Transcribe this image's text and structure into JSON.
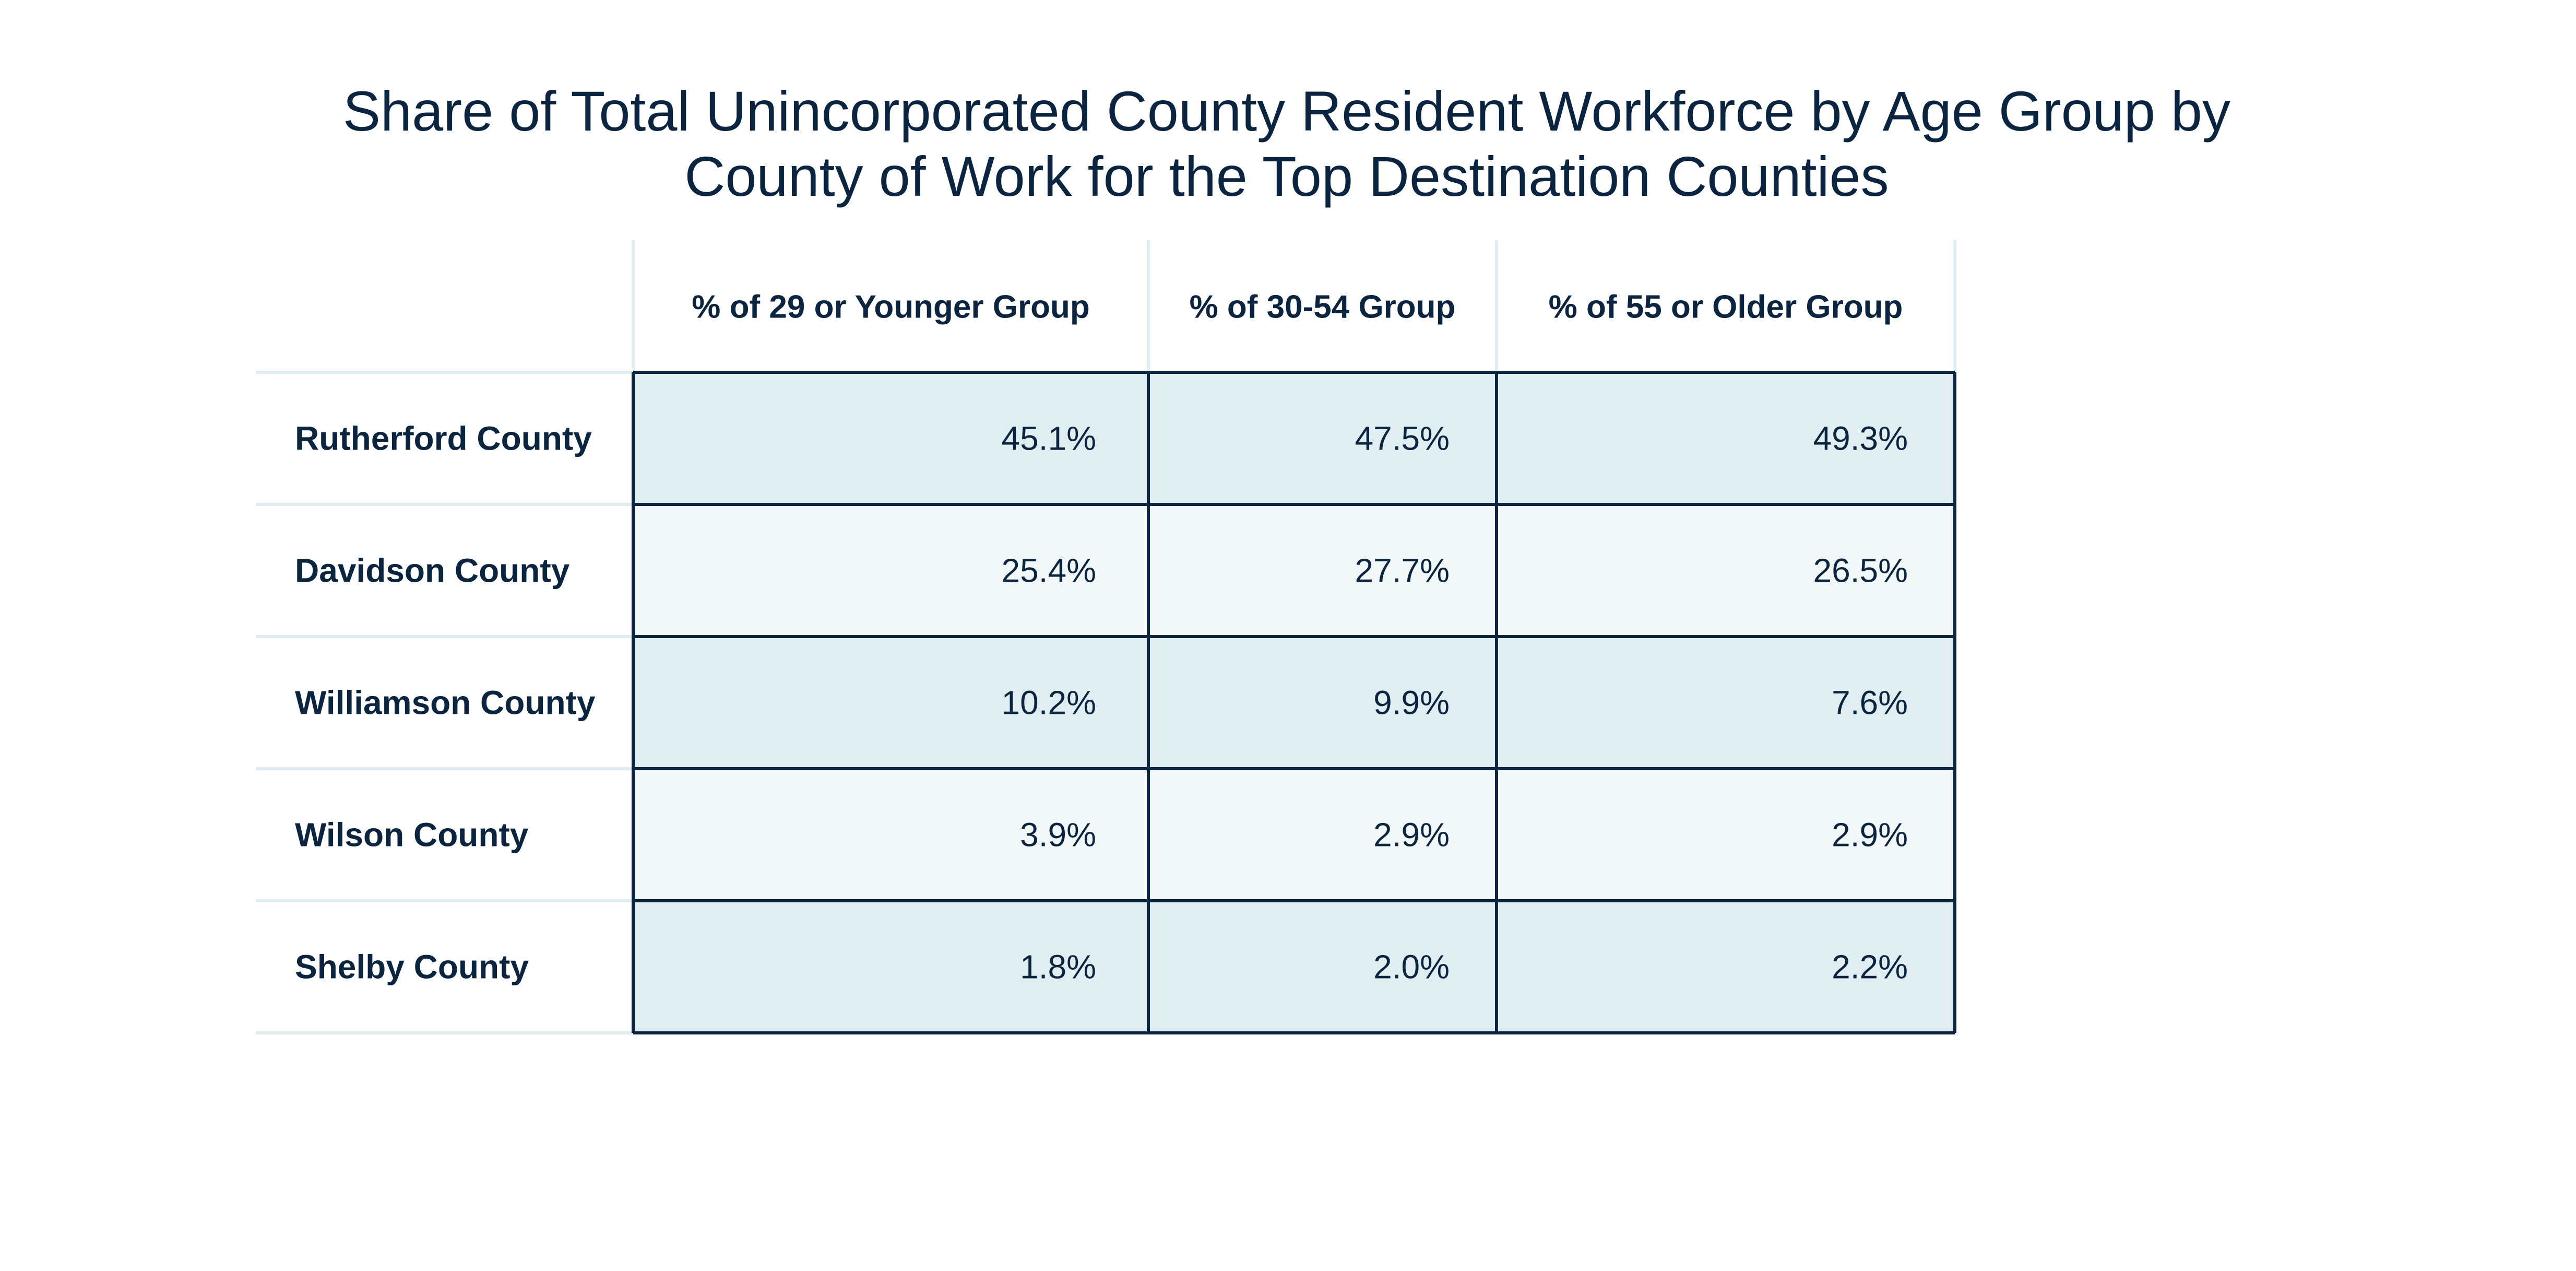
{
  "chart_data": {
    "type": "table",
    "title_lines": [
      "Share of Total Unincorporated County Resident Workforce by Age Group by",
      "County of Work for the Top Destination Counties"
    ],
    "columns": [
      "% of 29 or Younger Group",
      "% of 30-54 Group",
      "% of 55 or Older Group"
    ],
    "rows": [
      {
        "label": "Rutherford County",
        "values": [
          "45.1%",
          "47.5%",
          "49.3%"
        ]
      },
      {
        "label": "Davidson County",
        "values": [
          "25.4%",
          "27.7%",
          "26.5%"
        ]
      },
      {
        "label": "Williamson County",
        "values": [
          "10.2%",
          "9.9%",
          "7.6%"
        ]
      },
      {
        "label": "Wilson County",
        "values": [
          "3.9%",
          "2.9%",
          "2.9%"
        ]
      },
      {
        "label": "Shelby County",
        "values": [
          "1.8%",
          "2.0%",
          "2.2%"
        ]
      }
    ]
  },
  "colors": {
    "text": "#0b2440",
    "row_fill_dark": "#e0eef2",
    "row_fill_light": "#f2f8f8",
    "cell_border": "#0b2440",
    "header_rule": "#dfecf0"
  }
}
